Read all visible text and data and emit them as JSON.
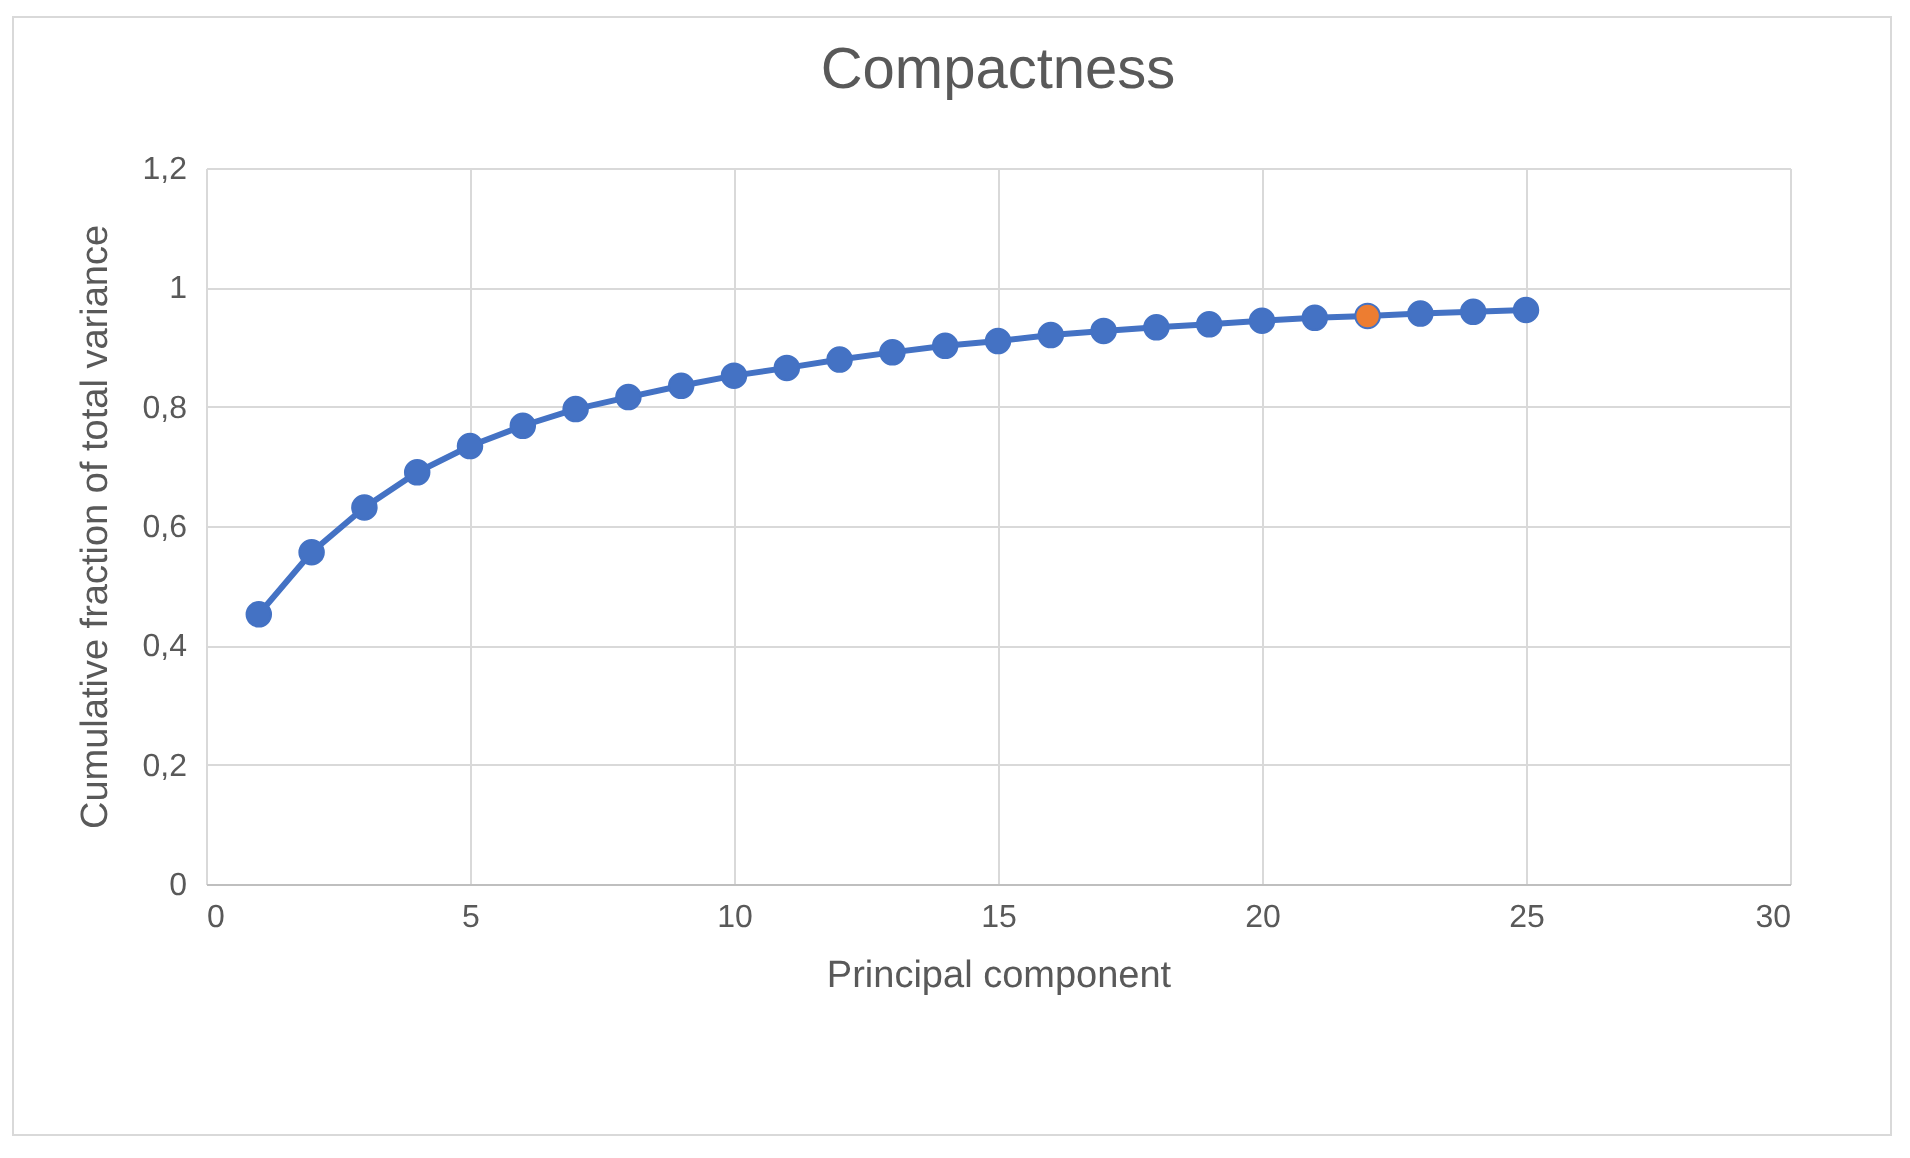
{
  "chart_data": {
    "type": "line",
    "title": "Compactness",
    "xlabel": "Principal component",
    "ylabel": "Cumulative fraction of total variance",
    "x": [
      1,
      2,
      3,
      4,
      5,
      6,
      7,
      8,
      9,
      10,
      11,
      12,
      13,
      14,
      15,
      16,
      17,
      18,
      19,
      20,
      21,
      22,
      23,
      24,
      25
    ],
    "series": [
      {
        "color": "#4472c4",
        "colors": [
          "#4472c4",
          "#4472c4",
          "#4472c4",
          "#4472c4",
          "#4472c4",
          "#4472c4",
          "#4472c4",
          "#4472c4",
          "#4472c4",
          "#4472c4",
          "#4472c4",
          "#4472c4",
          "#4472c4",
          "#4472c4",
          "#4472c4",
          "#4472c4",
          "#4472c4",
          "#4472c4",
          "#4472c4",
          "#4472c4",
          "#4472c4",
          "#ed7d31",
          "#4472c4",
          "#4472c4",
          "#4472c4"
        ],
        "values": [
          0.452,
          0.556,
          0.631,
          0.69,
          0.734,
          0.768,
          0.796,
          0.816,
          0.835,
          0.852,
          0.865,
          0.879,
          0.891,
          0.902,
          0.91,
          0.92,
          0.927,
          0.933,
          0.938,
          0.944,
          0.949,
          0.952,
          0.956,
          0.959,
          0.962
        ]
      }
    ],
    "xlim": [
      0,
      30
    ],
    "xticks": [
      0,
      5,
      10,
      15,
      20,
      25,
      30
    ],
    "ylim": [
      0,
      1.2
    ],
    "yticks": [
      0,
      {
        "value": 0.2,
        "label": "0,2"
      },
      {
        "value": 0.4,
        "label": "0,4"
      },
      {
        "value": 0.6,
        "label": "0,6"
      },
      {
        "value": 0.8,
        "label": "0,8"
      },
      1,
      {
        "value": 1.2,
        "label": "1,2"
      }
    ],
    "grid": true,
    "marker": "circle",
    "line_style": "solid"
  }
}
